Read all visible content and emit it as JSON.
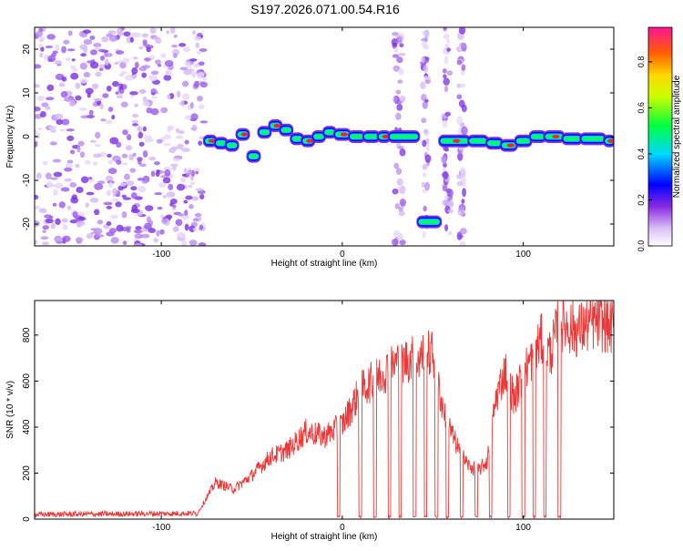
{
  "title": "S197.2026.071.00.54.R16",
  "chart_data": [
    {
      "type": "heatmap",
      "xlabel": "Height of straight line (km)",
      "ylabel": "Frequency (Hz)",
      "xlim": [
        -170,
        150
      ],
      "ylim": [
        -25,
        25
      ],
      "xticks": [
        -100,
        0,
        100
      ],
      "yticks": [
        -20,
        -10,
        0,
        10,
        20
      ],
      "colorbar": {
        "label": "Normalized spectral amplitude",
        "range": [
          0,
          0.95
        ],
        "ticks": [
          0.0,
          0.2,
          0.4,
          0.6,
          0.8
        ]
      },
      "signal_track": [
        {
          "x": -76,
          "f": -1.0
        },
        {
          "x": -70,
          "f": -1.5
        },
        {
          "x": -64,
          "f": -2.0
        },
        {
          "x": -58,
          "f": 0.5
        },
        {
          "x": -52,
          "f": -4.5
        },
        {
          "x": -46,
          "f": 1.0
        },
        {
          "x": -40,
          "f": 2.5
        },
        {
          "x": -34,
          "f": 1.5
        },
        {
          "x": -28,
          "f": -0.5
        },
        {
          "x": -22,
          "f": -1.0
        },
        {
          "x": -16,
          "f": 0.0
        },
        {
          "x": -10,
          "f": 1.0
        },
        {
          "x": -4,
          "f": 0.5
        },
        {
          "x": 4,
          "f": 0.0
        },
        {
          "x": 12,
          "f": 0.0
        },
        {
          "x": 20,
          "f": 0.0
        },
        {
          "x": 26,
          "f": 0.0
        },
        {
          "x": 42,
          "f": -19.5
        },
        {
          "x": 54,
          "f": -1.0
        },
        {
          "x": 70,
          "f": -1.0
        },
        {
          "x": 80,
          "f": -1.5
        },
        {
          "x": 88,
          "f": -2.0
        },
        {
          "x": 96,
          "f": -1.0
        },
        {
          "x": 104,
          "f": 0.0
        },
        {
          "x": 112,
          "f": 0.0
        },
        {
          "x": 122,
          "f": -0.5
        },
        {
          "x": 132,
          "f": -0.5
        },
        {
          "x": 145,
          "f": -1.0
        }
      ],
      "noise_region_x": [
        -170,
        -76
      ]
    },
    {
      "type": "line",
      "xlabel": "Height of straight line (km)",
      "ylabel": "SNR (10 * v/v)",
      "xlim": [
        -170,
        150
      ],
      "ylim": [
        0,
        950
      ],
      "xticks": [
        -100,
        0,
        100
      ],
      "yticks": [
        0,
        200,
        400,
        600,
        800
      ],
      "color": "#e83a3a",
      "envelope": [
        {
          "x": -170,
          "y": 20
        },
        {
          "x": -80,
          "y": 25
        },
        {
          "x": -70,
          "y": 160
        },
        {
          "x": -60,
          "y": 130
        },
        {
          "x": -50,
          "y": 190
        },
        {
          "x": -40,
          "y": 270
        },
        {
          "x": -30,
          "y": 300
        },
        {
          "x": -20,
          "y": 380
        },
        {
          "x": -10,
          "y": 360
        },
        {
          "x": 0,
          "y": 410
        },
        {
          "x": 10,
          "y": 560
        },
        {
          "x": 20,
          "y": 620
        },
        {
          "x": 30,
          "y": 680
        },
        {
          "x": 40,
          "y": 700
        },
        {
          "x": 50,
          "y": 720
        },
        {
          "x": 55,
          "y": 500
        },
        {
          "x": 60,
          "y": 380
        },
        {
          "x": 65,
          "y": 290
        },
        {
          "x": 70,
          "y": 230
        },
        {
          "x": 75,
          "y": 210
        },
        {
          "x": 80,
          "y": 250
        },
        {
          "x": 85,
          "y": 530
        },
        {
          "x": 90,
          "y": 650
        },
        {
          "x": 95,
          "y": 520
        },
        {
          "x": 100,
          "y": 640
        },
        {
          "x": 105,
          "y": 700
        },
        {
          "x": 110,
          "y": 780
        },
        {
          "x": 115,
          "y": 720
        },
        {
          "x": 120,
          "y": 860
        },
        {
          "x": 130,
          "y": 820
        },
        {
          "x": 140,
          "y": 860
        },
        {
          "x": 150,
          "y": 830
        }
      ],
      "dropouts_x": [
        -2,
        10,
        18,
        26,
        32,
        40,
        46,
        52,
        58,
        66,
        74,
        82,
        92,
        100,
        106,
        112,
        120
      ]
    }
  ]
}
